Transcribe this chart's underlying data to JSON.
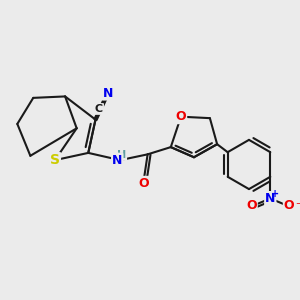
{
  "bg_color": "#ebebeb",
  "bond_color": "#1a1a1a",
  "bond_width": 1.5,
  "atom_colors": {
    "N": "#0000ee",
    "S": "#cccc00",
    "O": "#ee0000",
    "C_label": "#1a1a1a",
    "NH": "#5f9ea0",
    "N_nitro": "#0000ee",
    "O_nitro": "#ee0000"
  },
  "font_size": 9,
  "fig_size": [
    3.0,
    3.0
  ],
  "dpi": 100
}
